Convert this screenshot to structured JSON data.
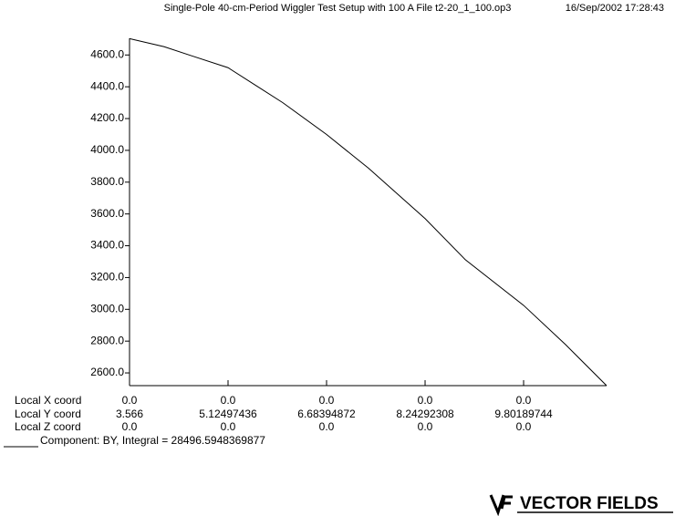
{
  "chart_data": {
    "type": "line",
    "title": "Single-Pole 40-cm-Period Wiggler Test Setup with 100 A  File t2-20_1_100.op3",
    "timestamp": "16/Sep/2002 17:28:43",
    "x": [
      3.566,
      4.115,
      4.548,
      5.125,
      5.558,
      5.991,
      6.684,
      7.35,
      8.243,
      8.878,
      9.802,
      10.466,
      11.115
    ],
    "series": [
      {
        "name": "Component:  BY, Integral = 28496.5948369877",
        "color": "#000000",
        "values": [
          4703,
          4652,
          4595,
          4520,
          4410,
          4300,
          4100,
          3887,
          3571,
          3313,
          3025,
          2778,
          2520
        ]
      }
    ],
    "xlim": [
      3.566,
      11.115
    ],
    "xticks": [
      3.566,
      5.12497436,
      6.68394872,
      8.24292308,
      9.80189744
    ],
    "ylim": [
      2520,
      4705
    ],
    "yticks": [
      {
        "value": 2600,
        "label": "2600.0"
      },
      {
        "value": 2800,
        "label": "2800.0"
      },
      {
        "value": 3000,
        "label": "3000.0"
      },
      {
        "value": 3200,
        "label": "3200.0"
      },
      {
        "value": 3400,
        "label": "3400.0"
      },
      {
        "value": 3600,
        "label": "3600.0"
      },
      {
        "value": 3800,
        "label": "3800.0"
      },
      {
        "value": 4000,
        "label": "4000.0"
      },
      {
        "value": 4200,
        "label": "4200.0"
      },
      {
        "value": 4400,
        "label": "4400.0"
      },
      {
        "value": 4600,
        "label": "4600.0"
      }
    ],
    "coord_row_labels": [
      "Local X coord",
      "Local Y coord",
      "Local Z coord"
    ],
    "x_coord_labels": [
      "0.0",
      "0.0",
      "0.0",
      "0.0",
      "0.0"
    ],
    "z_coord_labels": [
      "0.0",
      "0.0",
      "0.0",
      "0.0",
      "0.0"
    ],
    "logo": "VECTOR FIELDS"
  }
}
